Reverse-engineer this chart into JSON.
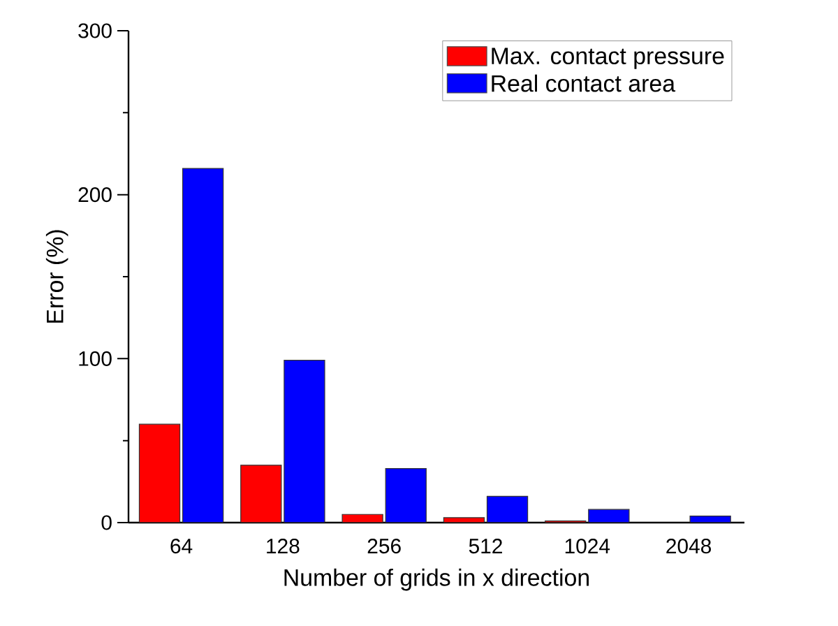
{
  "chart_data": {
    "type": "bar",
    "xlabel": "Number of grids in x direction",
    "ylabel": "Error (%)",
    "categories": [
      "64",
      "128",
      "256",
      "512",
      "1024",
      "2048"
    ],
    "series": [
      {
        "name": "Max. contact pressure",
        "color": "#ff0000",
        "values": [
          60,
          35,
          5,
          3,
          1,
          null
        ]
      },
      {
        "name": "Real contact area",
        "color": "#0000ff",
        "values": [
          216,
          99,
          33,
          16,
          8,
          4
        ]
      }
    ],
    "ylim": [
      0,
      300
    ],
    "yticks": [
      0,
      100,
      200,
      300
    ],
    "legend": "top right",
    "grid": false
  }
}
